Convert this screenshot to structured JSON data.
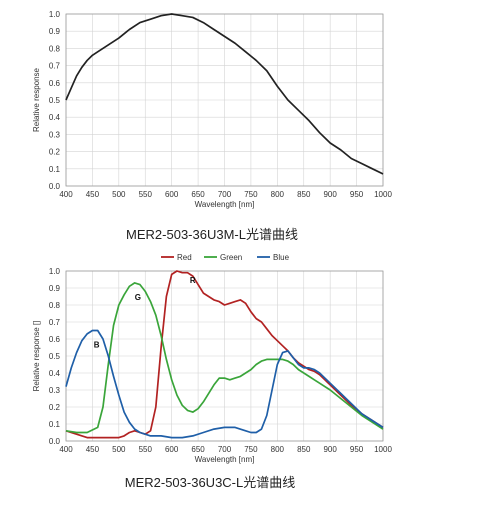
{
  "chart_data": [
    {
      "type": "line",
      "caption": "MER2-503-36U3M-L光谱曲线",
      "xlabel": "Wavelength [nm]",
      "ylabel": "Relative response",
      "xlim": [
        400,
        1000
      ],
      "ylim": [
        0,
        1.0
      ],
      "xticks": [
        400,
        450,
        500,
        550,
        600,
        650,
        700,
        750,
        800,
        850,
        900,
        950,
        1000
      ],
      "yticks": [
        0.0,
        0.1,
        0.2,
        0.3,
        0.4,
        0.5,
        0.6,
        0.7,
        0.8,
        0.9,
        1.0
      ],
      "grid": true,
      "legend": "none",
      "colors": [
        "#222222"
      ],
      "series": [
        {
          "x": [
            400,
            410,
            420,
            430,
            440,
            450,
            460,
            480,
            500,
            520,
            540,
            560,
            580,
            600,
            620,
            640,
            660,
            680,
            700,
            720,
            740,
            760,
            780,
            800,
            820,
            840,
            860,
            880,
            900,
            920,
            940,
            960,
            980,
            1000
          ],
          "values": [
            0.5,
            0.57,
            0.64,
            0.69,
            0.73,
            0.76,
            0.78,
            0.82,
            0.86,
            0.91,
            0.95,
            0.97,
            0.99,
            1.0,
            0.99,
            0.98,
            0.95,
            0.91,
            0.87,
            0.83,
            0.78,
            0.73,
            0.67,
            0.58,
            0.5,
            0.44,
            0.38,
            0.31,
            0.25,
            0.21,
            0.16,
            0.13,
            0.1,
            0.07
          ]
        }
      ]
    },
    {
      "type": "line",
      "caption": "MER2-503-36U3C-L光谱曲线",
      "xlabel": "Wavelength [nm]",
      "ylabel": "Relative response []",
      "xlim": [
        400,
        1000
      ],
      "ylim": [
        0,
        1.0
      ],
      "xticks": [
        400,
        450,
        500,
        550,
        600,
        650,
        700,
        750,
        800,
        850,
        900,
        950,
        1000
      ],
      "yticks": [
        0.0,
        0.1,
        0.2,
        0.3,
        0.4,
        0.5,
        0.6,
        0.7,
        0.8,
        0.9,
        1.0
      ],
      "grid": true,
      "legend": "top",
      "series": [
        {
          "name": "Red",
          "color": "#b22222",
          "x": [
            400,
            420,
            440,
            460,
            480,
            500,
            510,
            520,
            530,
            540,
            550,
            560,
            570,
            580,
            590,
            600,
            610,
            620,
            630,
            640,
            650,
            660,
            670,
            680,
            690,
            700,
            710,
            720,
            730,
            740,
            750,
            760,
            770,
            780,
            790,
            800,
            810,
            820,
            830,
            840,
            850,
            860,
            870,
            880,
            890,
            900,
            920,
            940,
            960,
            980,
            1000
          ],
          "values": [
            0.06,
            0.04,
            0.02,
            0.02,
            0.02,
            0.02,
            0.03,
            0.05,
            0.06,
            0.05,
            0.04,
            0.06,
            0.2,
            0.55,
            0.85,
            0.98,
            1.0,
            0.99,
            0.99,
            0.97,
            0.92,
            0.87,
            0.85,
            0.83,
            0.82,
            0.8,
            0.81,
            0.82,
            0.83,
            0.81,
            0.76,
            0.72,
            0.7,
            0.66,
            0.62,
            0.59,
            0.56,
            0.53,
            0.49,
            0.46,
            0.44,
            0.42,
            0.41,
            0.39,
            0.36,
            0.33,
            0.27,
            0.21,
            0.16,
            0.12,
            0.08
          ]
        },
        {
          "name": "Green",
          "color": "#3aa53a",
          "x": [
            400,
            420,
            440,
            460,
            470,
            480,
            490,
            500,
            510,
            520,
            530,
            540,
            550,
            560,
            570,
            580,
            590,
            600,
            610,
            620,
            630,
            640,
            650,
            660,
            670,
            680,
            690,
            700,
            710,
            720,
            730,
            740,
            750,
            760,
            770,
            780,
            790,
            800,
            810,
            820,
            830,
            840,
            850,
            860,
            870,
            880,
            900,
            920,
            940,
            960,
            980,
            1000
          ],
          "values": [
            0.06,
            0.05,
            0.05,
            0.08,
            0.2,
            0.45,
            0.68,
            0.8,
            0.86,
            0.91,
            0.93,
            0.92,
            0.88,
            0.82,
            0.74,
            0.62,
            0.48,
            0.36,
            0.27,
            0.21,
            0.18,
            0.17,
            0.19,
            0.23,
            0.28,
            0.33,
            0.37,
            0.37,
            0.36,
            0.37,
            0.38,
            0.4,
            0.42,
            0.45,
            0.47,
            0.48,
            0.48,
            0.48,
            0.48,
            0.47,
            0.45,
            0.42,
            0.4,
            0.38,
            0.36,
            0.34,
            0.3,
            0.25,
            0.2,
            0.15,
            0.11,
            0.07
          ]
        },
        {
          "name": "Blue",
          "color": "#1f5fa8",
          "x": [
            400,
            410,
            420,
            430,
            440,
            450,
            460,
            470,
            480,
            490,
            500,
            510,
            520,
            530,
            540,
            550,
            560,
            580,
            600,
            620,
            640,
            660,
            680,
            700,
            720,
            740,
            750,
            760,
            770,
            780,
            790,
            800,
            810,
            820,
            830,
            840,
            850,
            860,
            870,
            880,
            890,
            900,
            920,
            940,
            960,
            980,
            1000
          ],
          "values": [
            0.32,
            0.43,
            0.52,
            0.59,
            0.63,
            0.65,
            0.65,
            0.6,
            0.5,
            0.38,
            0.27,
            0.17,
            0.11,
            0.07,
            0.05,
            0.04,
            0.03,
            0.03,
            0.02,
            0.02,
            0.03,
            0.05,
            0.07,
            0.08,
            0.08,
            0.06,
            0.05,
            0.05,
            0.07,
            0.15,
            0.3,
            0.45,
            0.52,
            0.53,
            0.49,
            0.45,
            0.43,
            0.43,
            0.42,
            0.4,
            0.37,
            0.34,
            0.28,
            0.22,
            0.16,
            0.12,
            0.08
          ]
        }
      ],
      "annotations": [
        {
          "text": "R",
          "x": 640,
          "y": 0.93
        },
        {
          "text": "G",
          "x": 536,
          "y": 0.83
        },
        {
          "text": "B",
          "x": 458,
          "y": 0.55
        }
      ]
    }
  ]
}
